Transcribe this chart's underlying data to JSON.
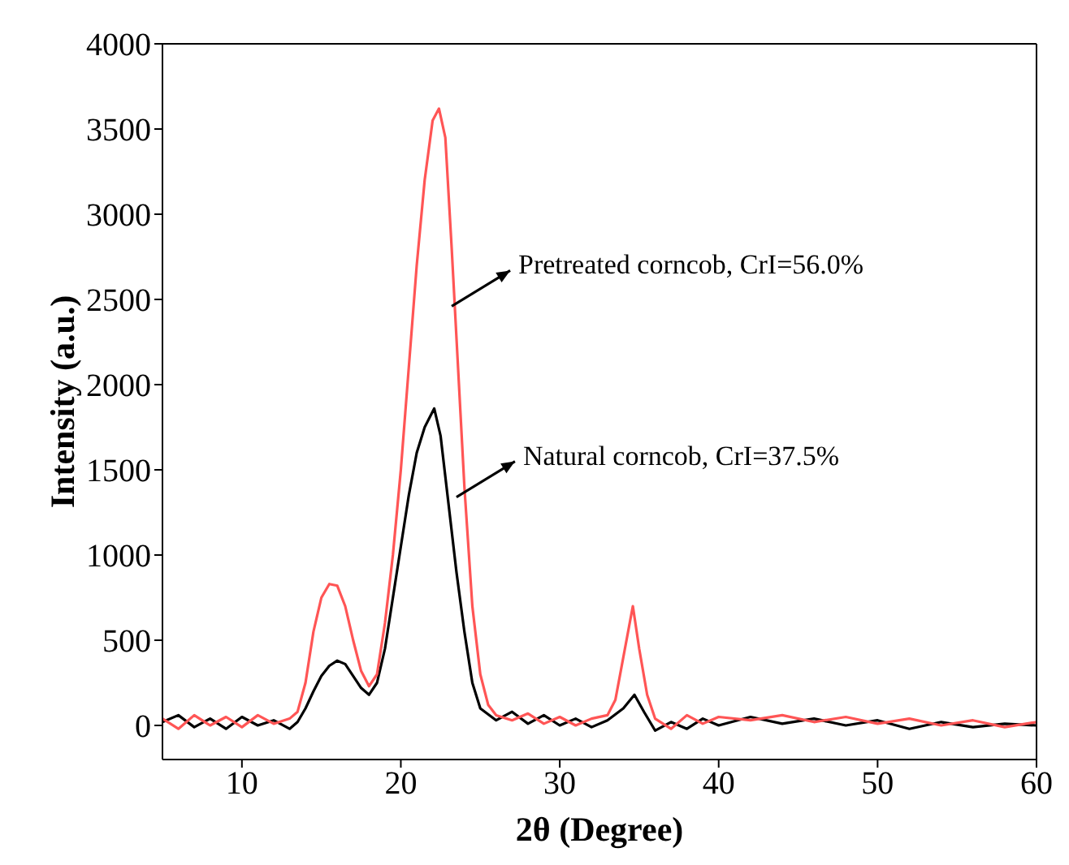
{
  "chart_data": {
    "type": "line",
    "xlabel": "2θ (Degree)",
    "ylabel": "Intensity (a.u.)",
    "xlim": [
      5,
      60
    ],
    "xticks": [
      10,
      20,
      30,
      40,
      50,
      60
    ],
    "ylim": [
      -200,
      4000
    ],
    "yticks": [
      0,
      500,
      1000,
      1500,
      2000,
      2500,
      3000,
      3500,
      4000
    ],
    "marker": "none",
    "line_style": "solid",
    "series": [
      {
        "color": "#000000",
        "x": [
          5,
          6,
          7,
          8,
          9,
          10,
          11,
          12,
          13,
          13.5,
          14,
          14.5,
          15,
          15.5,
          16,
          16.5,
          17,
          17.5,
          18,
          18.5,
          19,
          19.5,
          20,
          20.5,
          21,
          21.5,
          22.1,
          22.5,
          23,
          23.5,
          24,
          24.5,
          25,
          26,
          27,
          28,
          29,
          30,
          31,
          32,
          33,
          34,
          34.7,
          35.3,
          36,
          37,
          38,
          39,
          40,
          42,
          44,
          46,
          48,
          50,
          52,
          54,
          56,
          58,
          60
        ],
        "values": [
          20,
          60,
          -10,
          40,
          -20,
          50,
          0,
          30,
          -20,
          20,
          100,
          200,
          290,
          350,
          380,
          360,
          290,
          220,
          180,
          250,
          450,
          750,
          1050,
          1350,
          1600,
          1750,
          1860,
          1700,
          1300,
          900,
          550,
          250,
          100,
          30,
          80,
          10,
          60,
          0,
          40,
          -10,
          30,
          100,
          180,
          80,
          -30,
          20,
          -20,
          40,
          0,
          50,
          10,
          40,
          0,
          30,
          -20,
          20,
          -10,
          10,
          0
        ]
      },
      {
        "color": "#ff5555",
        "x": [
          5,
          6,
          7,
          8,
          9,
          10,
          11,
          12,
          13,
          13.5,
          14,
          14.5,
          15,
          15.5,
          16,
          16.5,
          17,
          17.5,
          18,
          18.5,
          19,
          19.5,
          20,
          20.5,
          21,
          21.5,
          22,
          22.4,
          22.8,
          23.2,
          23.6,
          24,
          24.5,
          25,
          25.5,
          26,
          27,
          28,
          29,
          30,
          31,
          32,
          33,
          33.5,
          34,
          34.6,
          35,
          35.5,
          36,
          37,
          38,
          39,
          40,
          42,
          44,
          46,
          48,
          50,
          52,
          54,
          56,
          58,
          60
        ],
        "values": [
          40,
          -20,
          60,
          0,
          50,
          -10,
          60,
          10,
          40,
          80,
          250,
          550,
          750,
          830,
          820,
          700,
          500,
          320,
          230,
          300,
          600,
          1000,
          1500,
          2100,
          2700,
          3200,
          3550,
          3620,
          3450,
          2800,
          2100,
          1400,
          700,
          300,
          120,
          60,
          30,
          70,
          10,
          50,
          0,
          40,
          60,
          150,
          400,
          700,
          450,
          180,
          40,
          -20,
          60,
          10,
          50,
          30,
          60,
          20,
          50,
          10,
          40,
          0,
          30,
          -10,
          20
        ]
      }
    ],
    "annotations": [
      {
        "text": "Pretreated corncob, CrI=56.0%",
        "x": 23.2,
        "y": 2460
      },
      {
        "text": "Natural corncob, CrI=37.5%",
        "x": 23.5,
        "y": 1340
      }
    ]
  }
}
